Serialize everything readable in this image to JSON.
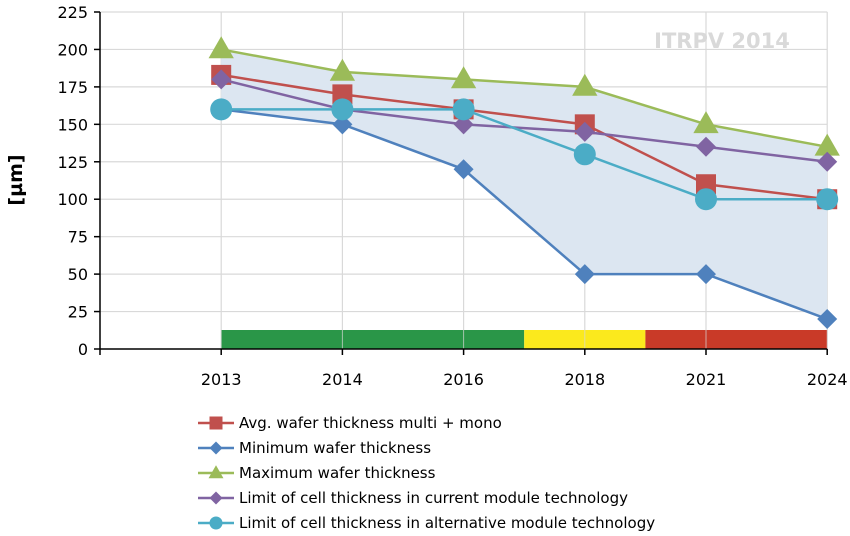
{
  "chart_data": {
    "type": "line",
    "title": "",
    "watermark": "ITRPV 2014",
    "xlabel": "",
    "ylabel": "[µm]",
    "categories": [
      "2013",
      "2014",
      "2016",
      "2018",
      "2021",
      "2024"
    ],
    "ylim": [
      0,
      225
    ],
    "yticks": [
      0,
      25,
      50,
      75,
      100,
      125,
      150,
      175,
      200,
      225
    ],
    "grid": true,
    "legend_position": "bottom",
    "series": [
      {
        "name": "Avg. wafer thickness multi + mono",
        "marker": "square",
        "color": "#c0504d",
        "values": [
          183,
          170,
          160,
          150,
          110,
          100
        ]
      },
      {
        "name": "Minimum wafer thickness",
        "marker": "diamond",
        "color": "#4f81bd",
        "values": [
          160,
          150,
          120,
          50,
          50,
          20
        ]
      },
      {
        "name": "Maximum wafer thickness",
        "marker": "triangle",
        "color": "#9bbb59",
        "values": [
          200,
          185,
          180,
          175,
          150,
          135
        ]
      },
      {
        "name": "Limit of cell thickness in current module technology",
        "marker": "diamond",
        "color": "#8064a2",
        "values": [
          180,
          160,
          150,
          145,
          135,
          125
        ]
      },
      {
        "name": "Limit of cell thickness in alternative module technology",
        "marker": "circle",
        "color": "#4bacc6",
        "values": [
          160,
          160,
          160,
          130,
          100,
          100
        ]
      }
    ],
    "range_band": {
      "between": [
        "Minimum wafer thickness",
        "Maximum wafer thickness"
      ],
      "color": "#dce6f1"
    },
    "status_bar": {
      "segments": [
        {
          "from": 0,
          "to": 2.5,
          "color": "#2a9648",
          "status": "green"
        },
        {
          "from": 2.5,
          "to": 3.5,
          "color": "#fbe91d",
          "status": "yellow"
        },
        {
          "from": 3.5,
          "to": 5,
          "color": "#c93a28",
          "status": "red"
        }
      ],
      "note": "segment bounds in category index units (0 = 2013, 5 = 2024)"
    }
  }
}
